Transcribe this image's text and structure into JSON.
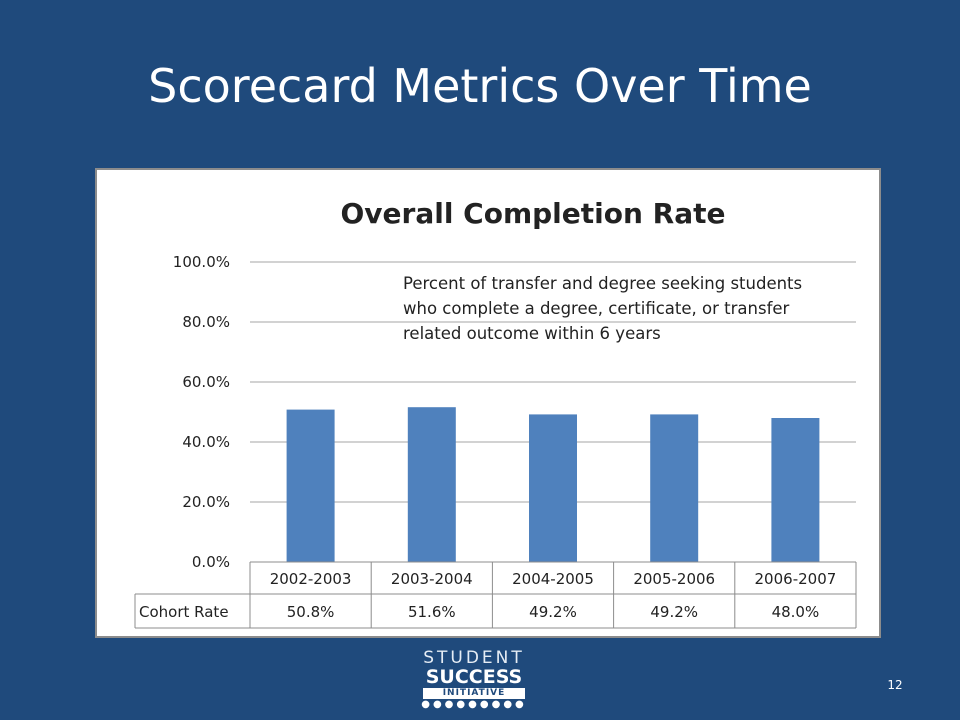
{
  "slide": {
    "title": "Scorecard Metrics Over Time",
    "page_number": "12"
  },
  "logo": {
    "line1": "STUDENT",
    "line2": "SUCCESS",
    "line3": "INITIATIVE",
    "dots": "●●●●●●●●●"
  },
  "chart_data": {
    "type": "bar",
    "title": "Overall Completion Rate",
    "categories": [
      "2002-2003",
      "2003-2004",
      "2004-2005",
      "2005-2006",
      "2006-2007"
    ],
    "values": [
      50.8,
      51.6,
      49.2,
      49.2,
      48.0
    ],
    "value_labels": [
      "50.8%",
      "51.6%",
      "49.2%",
      "49.2%",
      "48.0%"
    ],
    "ylim": [
      0,
      100
    ],
    "yticks": [
      "0.0%",
      "20.0%",
      "40.0%",
      "60.0%",
      "80.0%",
      "100.0%"
    ],
    "ytick_values": [
      0,
      20,
      40,
      60,
      80,
      100
    ],
    "grid": true,
    "data_table_row_label": "Cohort Rate",
    "annotation_lines": [
      "Percent of transfer and degree seeking students",
      "who complete a degree, certificate, or transfer",
      "related outcome within 6 years"
    ],
    "colors": {
      "bar": "#4F81BD",
      "grid": "#A6A6A6",
      "table_border": "#8C8C8C"
    }
  }
}
